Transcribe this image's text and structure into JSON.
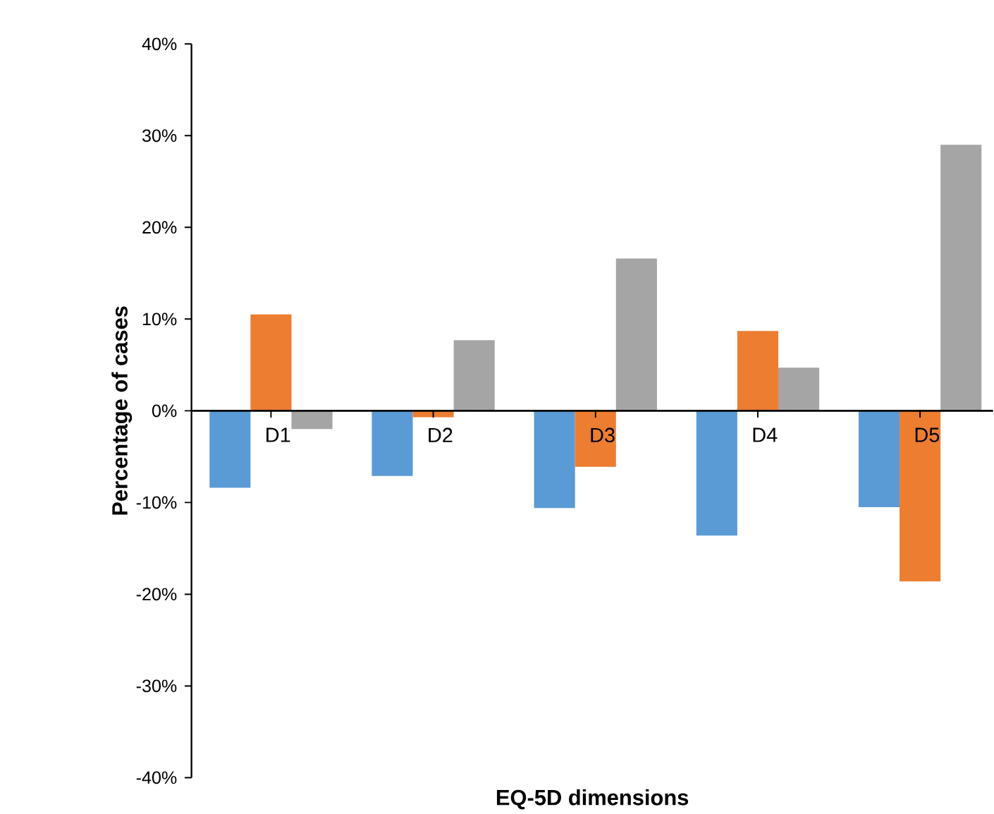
{
  "chart_data": {
    "type": "bar",
    "xlabel": "EQ-5D dimensions",
    "ylabel": "Percentage of cases",
    "categories": [
      "D1",
      "D2",
      "D3",
      "D4",
      "D5"
    ],
    "series": [
      {
        "color": "#5b9bd5",
        "values": [
          -8.4,
          -7.1,
          -10.6,
          -13.6,
          -10.5
        ]
      },
      {
        "color": "#ed7d31",
        "values": [
          10.5,
          -0.7,
          -6.1,
          8.7,
          -18.6
        ]
      },
      {
        "color": "#a5a5a5",
        "values": [
          -2.0,
          7.7,
          16.6,
          4.7,
          29.0
        ]
      }
    ],
    "ylim": [
      -40,
      40
    ],
    "yticks": [
      {
        "value": -40,
        "label": "-40%"
      },
      {
        "value": -30,
        "label": "-30%"
      },
      {
        "value": -20,
        "label": "-20%"
      },
      {
        "value": -10,
        "label": "-10%"
      },
      {
        "value": 0,
        "label": "0%"
      },
      {
        "value": 10,
        "label": "10%"
      },
      {
        "value": 20,
        "label": "20%"
      },
      {
        "value": 30,
        "label": "30%"
      },
      {
        "value": 40,
        "label": "40%"
      }
    ],
    "grid": false
  }
}
